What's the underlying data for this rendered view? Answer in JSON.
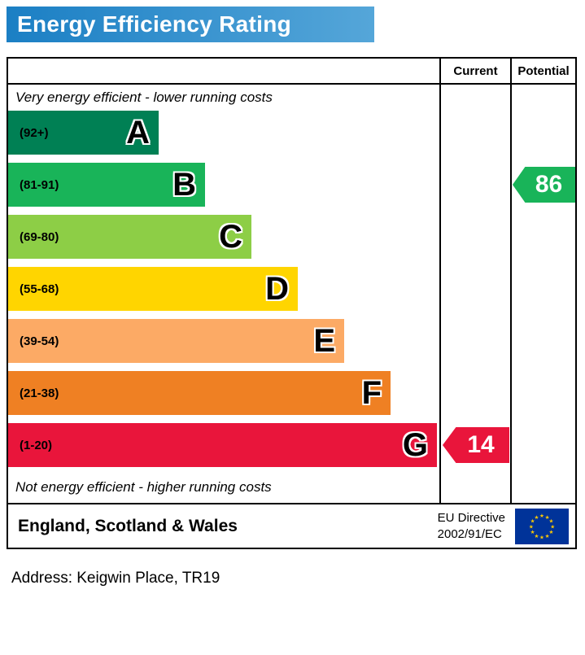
{
  "chart_data": {
    "type": "bar",
    "title": "Energy Efficiency Rating",
    "columns": {
      "current": "Current",
      "potential": "Potential"
    },
    "top_note": "Very energy efficient - lower running costs",
    "bottom_note": "Not energy efficient - higher running costs",
    "bands": [
      {
        "letter": "A",
        "range": "(92+)",
        "color": "#008054"
      },
      {
        "letter": "B",
        "range": "(81-91)",
        "color": "#19b459"
      },
      {
        "letter": "C",
        "range": "(69-80)",
        "color": "#8dce46"
      },
      {
        "letter": "D",
        "range": "(55-68)",
        "color": "#ffd500"
      },
      {
        "letter": "E",
        "range": "(39-54)",
        "color": "#fcaa65"
      },
      {
        "letter": "F",
        "range": "(21-38)",
        "color": "#ef8023"
      },
      {
        "letter": "G",
        "range": "(1-20)",
        "color": "#e9153b"
      }
    ],
    "current": {
      "value": 14,
      "band": "G",
      "color": "#e9153b"
    },
    "potential": {
      "value": 86,
      "band": "B",
      "color": "#19b459"
    }
  },
  "footer": {
    "region": "England, Scotland & Wales",
    "directive_line1": "EU Directive",
    "directive_line2": "2002/91/EC"
  },
  "address": "Address: Keigwin Place, TR19"
}
